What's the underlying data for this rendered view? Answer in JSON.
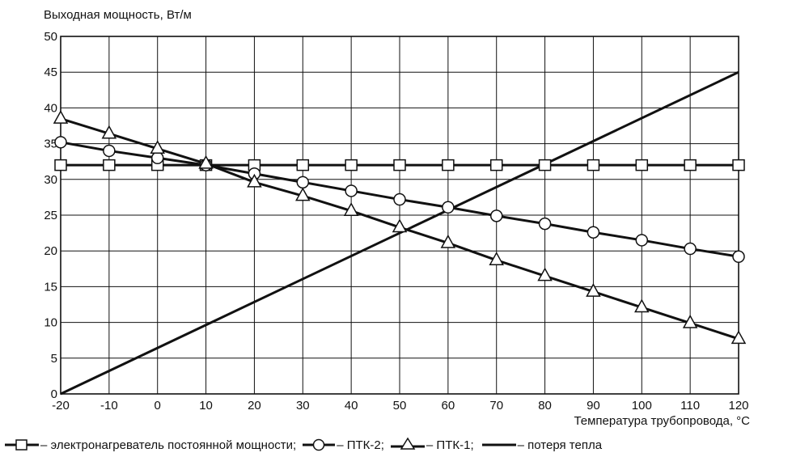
{
  "chart_data": {
    "type": "line",
    "ylabel": "Выходная мощность, Вт/м",
    "xlabel": "Температура трубопровода, °С",
    "xlim": [
      -20,
      120
    ],
    "ylim": [
      0,
      50
    ],
    "xticks": [
      "-20",
      "-10",
      "0",
      "10",
      "20",
      "30",
      "40",
      "50",
      "60",
      "70",
      "80",
      "90",
      "100",
      "110",
      "120"
    ],
    "yticks": [
      "0",
      "5",
      "10",
      "15",
      "20",
      "25",
      "30",
      "35",
      "40",
      "45",
      "50"
    ],
    "grid": true,
    "legend_position": "bottom",
    "series": [
      {
        "key": "constant",
        "legend": "– электронагреватель постоянной мощности;",
        "marker": "square",
        "x": [
          -20,
          -10,
          0,
          10,
          20,
          30,
          40,
          50,
          60,
          70,
          80,
          90,
          100,
          110,
          120
        ],
        "values": [
          32,
          32,
          32,
          32,
          32,
          32,
          32,
          32,
          32,
          32,
          32,
          32,
          32,
          32,
          32
        ]
      },
      {
        "key": "ptk2",
        "legend": "– ПТК-2;",
        "marker": "circle",
        "x": [
          -20,
          -10,
          0,
          10,
          20,
          30,
          40,
          50,
          60,
          70,
          80,
          90,
          100,
          110,
          120
        ],
        "values": [
          35.2,
          34,
          33,
          32,
          30.8,
          29.6,
          28.4,
          27.2,
          26.1,
          24.9,
          23.8,
          22.6,
          21.5,
          20.3,
          19.2
        ]
      },
      {
        "key": "ptk1",
        "legend": "– ПТК-1;",
        "marker": "triangle",
        "x": [
          -20,
          -10,
          0,
          10,
          20,
          30,
          40,
          50,
          60,
          70,
          80,
          90,
          100,
          110,
          120
        ],
        "values": [
          38.5,
          36.4,
          34.3,
          32.2,
          29.6,
          27.7,
          25.6,
          23.3,
          21.1,
          18.7,
          16.5,
          14.3,
          12.1,
          9.9,
          7.7
        ]
      },
      {
        "key": "loss",
        "legend": "– потеря тепла",
        "marker": "none",
        "x": [
          -20,
          120
        ],
        "values": [
          0,
          45
        ]
      }
    ]
  }
}
